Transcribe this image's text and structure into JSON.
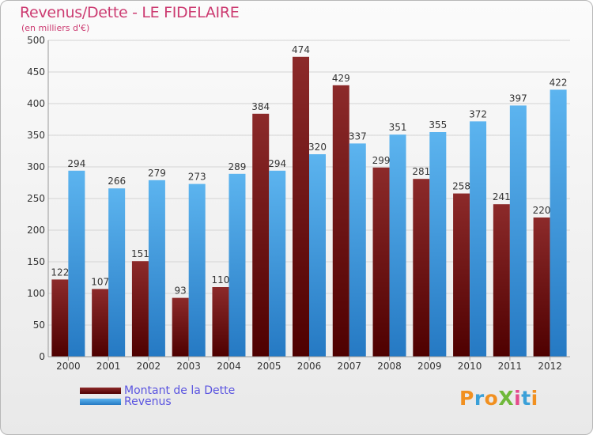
{
  "title": "Revenus/Dette - LE FIDELAIRE",
  "subtitle": "(en milliers d'€)",
  "colors": {
    "dette": "#7a1818",
    "revenus": "#3f9ee0",
    "title": "#cc3b71",
    "legend_text": "#5a54e0"
  },
  "chart_data": {
    "type": "bar",
    "categories": [
      "2000",
      "2001",
      "2002",
      "2003",
      "2004",
      "2005",
      "2006",
      "2007",
      "2008",
      "2009",
      "2010",
      "2011",
      "2012"
    ],
    "series": [
      {
        "name": "Montant de la Dette",
        "values": [
          122,
          107,
          151,
          93,
          110,
          384,
          474,
          429,
          299,
          281,
          258,
          241,
          220
        ]
      },
      {
        "name": "Revenus",
        "values": [
          294,
          266,
          279,
          273,
          289,
          294,
          320,
          337,
          351,
          355,
          372,
          397,
          422
        ]
      }
    ],
    "ylim": [
      0,
      500
    ],
    "yticks": [
      0,
      50,
      100,
      150,
      200,
      250,
      300,
      350,
      400,
      450,
      500
    ],
    "grid": true,
    "legend_position": "bottom-left"
  },
  "legend": {
    "dette_label": "Montant de la Dette",
    "revenus_label": "Revenus"
  },
  "logo": {
    "text": "ProXiti"
  }
}
